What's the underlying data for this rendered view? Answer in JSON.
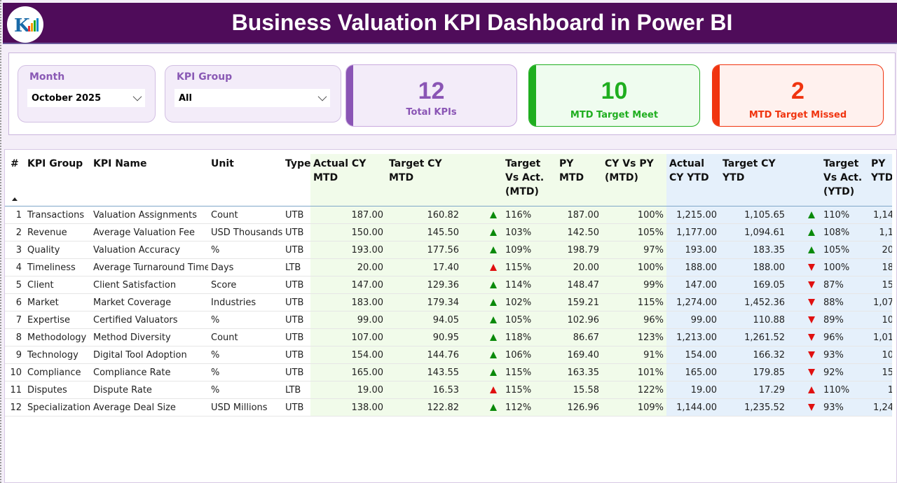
{
  "header": {
    "title": "Business Valuation KPI Dashboard in Power BI",
    "logo_icon": "company-logo"
  },
  "filters": {
    "month": {
      "label": "Month",
      "value": "October 2025"
    },
    "kpi_group": {
      "label": "KPI Group",
      "value": "All"
    }
  },
  "cards": [
    {
      "value": "12",
      "label": "Total KPIs",
      "color": "#8a55b5",
      "bg": "#f3ecf9"
    },
    {
      "value": "10",
      "label": "MTD Target Meet",
      "color": "#1fae1f",
      "bg": "#effcef"
    },
    {
      "value": "2",
      "label": "MTD Target Missed",
      "color": "#f0340f",
      "bg": "#fff1ee"
    }
  ],
  "table": {
    "columns": [
      "#",
      "KPI Group",
      "KPI Name",
      "Unit",
      "Type",
      "Actual CY MTD",
      "Target CY MTD",
      "",
      "Target Vs Act. (MTD)",
      "PY MTD",
      "CY Vs PY (MTD)",
      "Actual CY YTD",
      "Target CY YTD",
      "",
      "Target Vs Act. (YTD)",
      "PY YTD"
    ],
    "rows": [
      [
        "1",
        "Transactions",
        "Valuation Assignments",
        "Count",
        "UTB",
        "187.00",
        "160.82",
        "up-green",
        "116%",
        "187.00",
        "100%",
        "1,215.00",
        "1,105.65",
        "up-green",
        "110%",
        "1,14"
      ],
      [
        "2",
        "Revenue",
        "Average Valuation Fee",
        "USD Thousands",
        "UTB",
        "150.00",
        "145.50",
        "up-green",
        "103%",
        "142.50",
        "105%",
        "1,177.00",
        "1,094.61",
        "up-green",
        "108%",
        "1,1"
      ],
      [
        "3",
        "Quality",
        "Valuation Accuracy",
        "%",
        "UTB",
        "193.00",
        "177.56",
        "up-green",
        "109%",
        "198.79",
        "97%",
        "193.00",
        "183.35",
        "up-green",
        "105%",
        "20"
      ],
      [
        "4",
        "Timeliness",
        "Average Turnaround Time",
        "Days",
        "LTB",
        "20.00",
        "17.40",
        "up-red",
        "115%",
        "20.00",
        "100%",
        "188.00",
        "188.00",
        "down-red",
        "100%",
        "18"
      ],
      [
        "5",
        "Client",
        "Client Satisfaction",
        "Score",
        "UTB",
        "147.00",
        "129.36",
        "up-green",
        "114%",
        "148.47",
        "99%",
        "147.00",
        "169.05",
        "down-red",
        "87%",
        "15"
      ],
      [
        "6",
        "Market",
        "Market Coverage",
        "Industries",
        "UTB",
        "183.00",
        "179.34",
        "up-green",
        "102%",
        "159.21",
        "115%",
        "1,274.00",
        "1,452.36",
        "down-red",
        "88%",
        "1,07"
      ],
      [
        "7",
        "Expertise",
        "Certified Valuators",
        "%",
        "UTB",
        "99.00",
        "94.05",
        "up-green",
        "105%",
        "102.96",
        "96%",
        "99.00",
        "110.88",
        "down-red",
        "89%",
        "10"
      ],
      [
        "8",
        "Methodology",
        "Method Diversity",
        "Count",
        "UTB",
        "107.00",
        "90.95",
        "up-green",
        "118%",
        "86.67",
        "123%",
        "1,213.00",
        "1,261.52",
        "down-red",
        "96%",
        "1,01"
      ],
      [
        "9",
        "Technology",
        "Digital Tool Adoption",
        "%",
        "UTB",
        "154.00",
        "144.76",
        "up-green",
        "106%",
        "169.40",
        "91%",
        "154.00",
        "166.32",
        "down-red",
        "93%",
        "10"
      ],
      [
        "10",
        "Compliance",
        "Compliance Rate",
        "%",
        "UTB",
        "165.00",
        "143.55",
        "up-green",
        "115%",
        "163.35",
        "101%",
        "165.00",
        "179.85",
        "down-red",
        "92%",
        "15"
      ],
      [
        "11",
        "Disputes",
        "Dispute Rate",
        "%",
        "LTB",
        "19.00",
        "16.53",
        "up-red",
        "115%",
        "15.58",
        "122%",
        "19.00",
        "17.29",
        "up-red",
        "110%",
        "1"
      ],
      [
        "12",
        "Specialization",
        "Average Deal Size",
        "USD Millions",
        "UTB",
        "138.00",
        "122.82",
        "up-green",
        "112%",
        "126.96",
        "109%",
        "1,144.00",
        "1,235.52",
        "down-red",
        "93%",
        "1,24"
      ]
    ]
  }
}
